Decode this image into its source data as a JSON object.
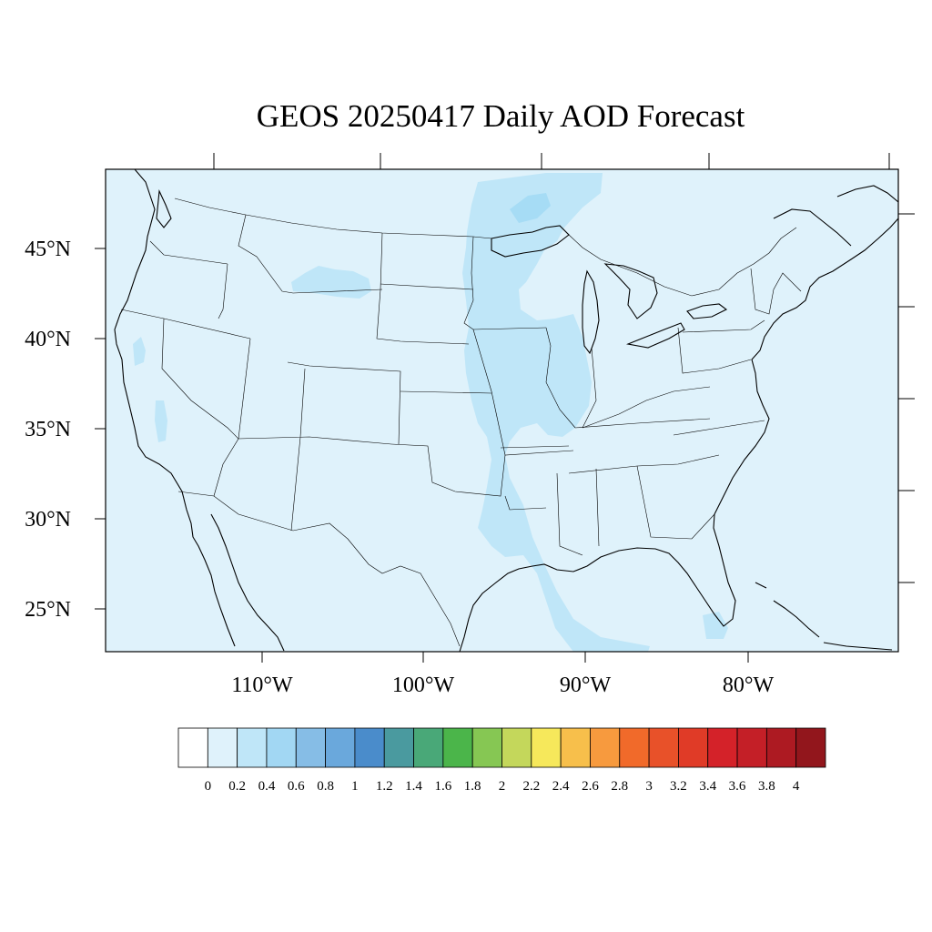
{
  "map": {
    "title": "GEOS 20250417 Daily AOD Forecast",
    "lat_labels": [
      "45°N",
      "40°N",
      "35°N",
      "30°N",
      "25°N"
    ],
    "lon_labels": [
      "110°W",
      "100°W",
      "90°W",
      "80°W"
    ],
    "colors": {
      "background": "#dff2fb",
      "plume_light": "#bfe6f8",
      "plume_mid": "#a6dcf5",
      "outline": "#000000"
    }
  },
  "colorbar": {
    "labels": [
      "0",
      "0.2",
      "0.4",
      "0.6",
      "0.8",
      "1",
      "1.2",
      "1.4",
      "1.6",
      "1.8",
      "2",
      "2.2",
      "2.4",
      "2.6",
      "2.8",
      "3",
      "3.2",
      "3.4",
      "3.6",
      "3.8",
      "4"
    ],
    "colors": [
      "#ffffff",
      "#dff2fb",
      "#bfe6f8",
      "#a2d7f3",
      "#86bde6",
      "#6aa8dc",
      "#4a8ccb",
      "#4a9a9f",
      "#49a878",
      "#4bb54a",
      "#86c753",
      "#c4d75b",
      "#f6e85b",
      "#f7bf4b",
      "#f79a3e",
      "#f16a2a",
      "#e85129",
      "#e03b27",
      "#d42229",
      "#c41f27",
      "#ad1a22",
      "#92161c"
    ]
  }
}
